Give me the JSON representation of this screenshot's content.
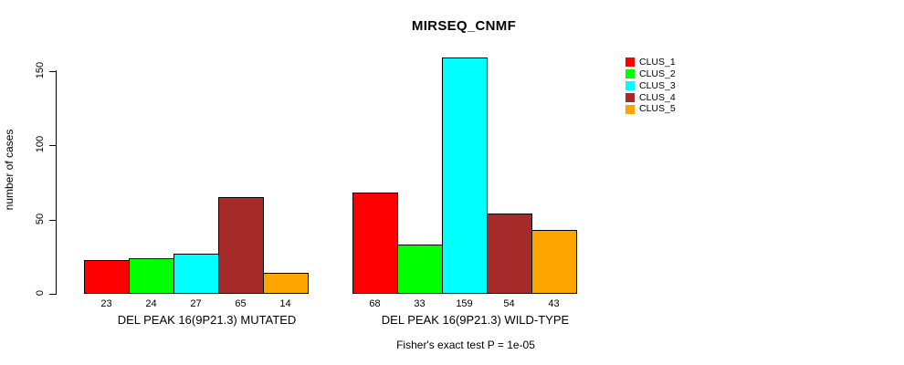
{
  "chart_data": {
    "type": "bar",
    "title": "MIRSEQ_CNMF",
    "xlabel": "",
    "ylabel": "number of cases",
    "ylim": [
      0,
      150
    ],
    "yticks": [
      0,
      50,
      100,
      150
    ],
    "grid": false,
    "legend_position": "top-right",
    "bar_border_color": "#000000",
    "background_color": "#ffffff",
    "categories": [
      "DEL PEAK 16(9P21.3) MUTATED",
      "DEL PEAK 16(9P21.3) WILD-TYPE"
    ],
    "series": [
      {
        "name": "CLUS_1",
        "color": "#FF0000",
        "values": [
          23,
          68
        ]
      },
      {
        "name": "CLUS_2",
        "color": "#00FF00",
        "values": [
          24,
          33
        ]
      },
      {
        "name": "CLUS_3",
        "color": "#00FFFF",
        "values": [
          27,
          159
        ]
      },
      {
        "name": "CLUS_4",
        "color": "#A52A2A",
        "values": [
          65,
          54
        ]
      },
      {
        "name": "CLUS_5",
        "color": "#FFA500",
        "values": [
          14,
          43
        ]
      }
    ],
    "bar_value_labels": [
      [
        23,
        24,
        27,
        65,
        14
      ],
      [
        68,
        33,
        159,
        54,
        43
      ]
    ],
    "annotation": "Fisher's exact test P = 1e-05"
  }
}
